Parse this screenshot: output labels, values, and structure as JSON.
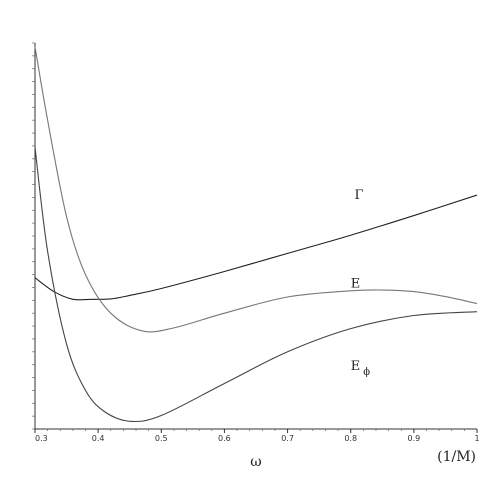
{
  "chart_data": {
    "type": "line",
    "xlabel": "ω",
    "xunit": "(1/M)",
    "x_ticks": [
      "0.3",
      "0.4",
      "0.5",
      "0.6",
      "0.7",
      "0.8",
      "0.9",
      "1"
    ],
    "xlim": [
      0.3,
      1.0
    ],
    "ylim": [
      0,
      1
    ],
    "y_tick_labels_shown": false,
    "grid": false,
    "series": [
      {
        "name": "Γ",
        "sub": "",
        "color": "#222222",
        "label_at": [
          0.806,
          0.596
        ],
        "x": [
          0.3,
          0.33,
          0.36,
          0.39,
          0.42,
          0.45,
          0.5,
          0.6,
          0.7,
          0.8,
          0.9,
          1.0
        ],
        "y": [
          0.392,
          0.356,
          0.336,
          0.336,
          0.337,
          0.346,
          0.364,
          0.408,
          0.455,
          0.502,
          0.553,
          0.606
        ]
      },
      {
        "name": "E",
        "sub": "",
        "color": "#777777",
        "label_at": [
          0.8,
          0.366
        ],
        "x": [
          0.3,
          0.32,
          0.35,
          0.38,
          0.42,
          0.47,
          0.52,
          0.6,
          0.7,
          0.8,
          0.85,
          0.9,
          0.95,
          1.0
        ],
        "y": [
          0.99,
          0.8,
          0.55,
          0.4,
          0.3,
          0.254,
          0.262,
          0.3,
          0.342,
          0.358,
          0.36,
          0.356,
          0.343,
          0.325
        ]
      },
      {
        "name": "E",
        "sub": "ϕ",
        "color": "#444444",
        "label_at": [
          0.8,
          0.153
        ],
        "x": [
          0.3,
          0.32,
          0.35,
          0.38,
          0.41,
          0.45,
          0.5,
          0.6,
          0.7,
          0.8,
          0.9,
          1.0
        ],
        "y": [
          0.73,
          0.46,
          0.22,
          0.1,
          0.045,
          0.02,
          0.035,
          0.118,
          0.2,
          0.26,
          0.294,
          0.304
        ]
      }
    ]
  }
}
